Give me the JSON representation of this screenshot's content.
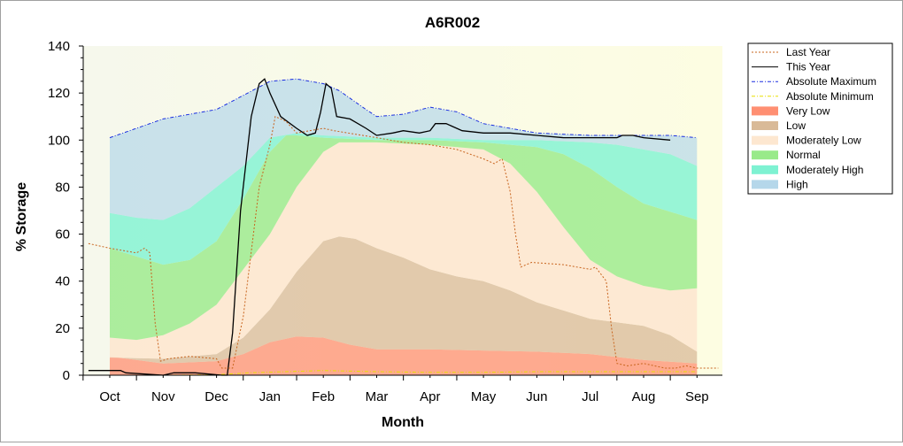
{
  "chart_data": {
    "type": "area",
    "title": "A6R002",
    "xlabel": "Month",
    "ylabel": "% Storage",
    "ylim": [
      0,
      140
    ],
    "yticks": [
      0,
      20,
      40,
      60,
      80,
      100,
      120,
      140
    ],
    "categories": [
      "Oct",
      "Nov",
      "Dec",
      "Jan",
      "Feb",
      "Mar",
      "Apr",
      "May",
      "Jun",
      "Jul",
      "Aug",
      "Sep"
    ],
    "x_unit": "month index (Oct = 0)",
    "legend_position": "right",
    "grid": false,
    "band_bounds": {
      "zero": [
        [
          0,
          0
        ],
        [
          11,
          0
        ]
      ],
      "absolute_minimum": [
        [
          0,
          0
        ],
        [
          1,
          0
        ],
        [
          2,
          0.2
        ],
        [
          2.6,
          1
        ],
        [
          3.3,
          1.5
        ],
        [
          4,
          2
        ],
        [
          5,
          1.5
        ],
        [
          6,
          1.2
        ],
        [
          7,
          1.2
        ],
        [
          8,
          1.5
        ],
        [
          9,
          1.5
        ],
        [
          10,
          1.5
        ],
        [
          11,
          1.5
        ]
      ],
      "very_low_top": [
        [
          0,
          8
        ],
        [
          1,
          5
        ],
        [
          2,
          6
        ],
        [
          2.5,
          9
        ],
        [
          3,
          14
        ],
        [
          3.5,
          16.5
        ],
        [
          4,
          16
        ],
        [
          4.5,
          13
        ],
        [
          5,
          11
        ],
        [
          6,
          11
        ],
        [
          7,
          10.5
        ],
        [
          8,
          10
        ],
        [
          9,
          9
        ],
        [
          10,
          6.5
        ],
        [
          11,
          5
        ]
      ],
      "low_top": [
        [
          0,
          7.5
        ],
        [
          1,
          7
        ],
        [
          2,
          9
        ],
        [
          2.5,
          16
        ],
        [
          3,
          28
        ],
        [
          3.5,
          44
        ],
        [
          4,
          57
        ],
        [
          4.3,
          59
        ],
        [
          4.6,
          58
        ],
        [
          5,
          54
        ],
        [
          5.5,
          50
        ],
        [
          6,
          45
        ],
        [
          6.5,
          42
        ],
        [
          7,
          40
        ],
        [
          7.5,
          36
        ],
        [
          8,
          31
        ],
        [
          9,
          24
        ],
        [
          9.5,
          22.5
        ],
        [
          10,
          21
        ],
        [
          10.5,
          17
        ],
        [
          11,
          10
        ]
      ],
      "moderately_low_top": [
        [
          0,
          16
        ],
        [
          0.5,
          15
        ],
        [
          1,
          17
        ],
        [
          1.5,
          22
        ],
        [
          2,
          30
        ],
        [
          2.5,
          45
        ],
        [
          3,
          60
        ],
        [
          3.5,
          80
        ],
        [
          4,
          95
        ],
        [
          4.3,
          99
        ],
        [
          5,
          99
        ],
        [
          6,
          98
        ],
        [
          7,
          96
        ],
        [
          7.5,
          90
        ],
        [
          8,
          78
        ],
        [
          8.5,
          63
        ],
        [
          9,
          49
        ],
        [
          9.5,
          42
        ],
        [
          10,
          38
        ],
        [
          10.5,
          36
        ],
        [
          11,
          37
        ]
      ],
      "normal_top": [
        [
          0,
          54
        ],
        [
          1,
          47
        ],
        [
          1.5,
          49
        ],
        [
          2,
          57
        ],
        [
          2.5,
          75
        ],
        [
          3,
          95
        ],
        [
          3.3,
          102
        ],
        [
          3.5,
          102
        ],
        [
          4,
          101
        ],
        [
          5,
          100
        ],
        [
          6,
          100
        ],
        [
          7,
          99
        ],
        [
          8,
          97
        ],
        [
          8.5,
          94
        ],
        [
          9,
          88
        ],
        [
          9.5,
          80
        ],
        [
          10,
          73
        ],
        [
          11,
          66
        ]
      ],
      "moderately_high_top": [
        [
          0,
          69
        ],
        [
          0.5,
          67
        ],
        [
          1,
          66
        ],
        [
          1.5,
          71
        ],
        [
          2,
          80
        ],
        [
          2.5,
          89
        ],
        [
          3,
          101
        ],
        [
          3.5,
          103
        ],
        [
          4,
          102
        ],
        [
          5,
          101
        ],
        [
          6,
          101
        ],
        [
          7,
          100
        ],
        [
          8,
          100
        ],
        [
          9,
          99
        ],
        [
          9.5,
          98
        ],
        [
          10,
          96
        ],
        [
          10.5,
          94
        ],
        [
          11,
          89
        ]
      ],
      "high_top": [
        [
          0,
          101
        ],
        [
          1,
          109
        ],
        [
          1.5,
          111
        ],
        [
          2,
          113
        ],
        [
          2.5,
          119
        ],
        [
          3,
          125
        ],
        [
          3.5,
          126
        ],
        [
          4,
          124
        ],
        [
          4.3,
          121
        ],
        [
          4.8,
          113
        ],
        [
          5,
          110
        ],
        [
          5.5,
          111
        ],
        [
          6,
          114
        ],
        [
          6.5,
          112
        ],
        [
          7,
          107
        ],
        [
          8,
          103
        ],
        [
          9,
          102
        ],
        [
          10,
          102
        ],
        [
          10.5,
          102
        ],
        [
          11,
          101
        ]
      ]
    },
    "series": [
      {
        "name": "Last Year",
        "color": "#c8641e",
        "style": "dotted",
        "points": [
          [
            -0.4,
            56
          ],
          [
            0,
            54
          ],
          [
            0.5,
            52
          ],
          [
            0.65,
            54
          ],
          [
            0.75,
            52
          ],
          [
            0.85,
            22
          ],
          [
            0.95,
            6
          ],
          [
            1.1,
            7
          ],
          [
            1.5,
            8
          ],
          [
            2,
            7
          ],
          [
            2.1,
            3
          ],
          [
            2.3,
            3
          ],
          [
            2.5,
            25
          ],
          [
            2.8,
            80
          ],
          [
            3,
            98
          ],
          [
            3.1,
            110
          ],
          [
            3.3,
            108
          ],
          [
            3.5,
            103
          ],
          [
            4,
            105
          ],
          [
            4.2,
            104
          ],
          [
            5,
            101
          ],
          [
            5.5,
            99
          ],
          [
            6,
            98
          ],
          [
            6.5,
            96
          ],
          [
            7,
            92
          ],
          [
            7.2,
            90
          ],
          [
            7.35,
            92
          ],
          [
            7.5,
            78
          ],
          [
            7.6,
            60
          ],
          [
            7.7,
            46
          ],
          [
            7.9,
            48
          ],
          [
            8.5,
            47
          ],
          [
            9,
            45
          ],
          [
            9.1,
            46
          ],
          [
            9.3,
            40
          ],
          [
            9.4,
            20
          ],
          [
            9.5,
            5
          ],
          [
            9.7,
            4
          ],
          [
            10,
            5
          ],
          [
            10.4,
            3
          ],
          [
            10.6,
            3
          ],
          [
            10.8,
            4
          ],
          [
            11,
            3
          ],
          [
            11.4,
            3
          ]
        ]
      },
      {
        "name": "This Year",
        "color": "#000000",
        "style": "solid",
        "points": [
          [
            -0.4,
            2
          ],
          [
            0.2,
            2
          ],
          [
            0.3,
            1
          ],
          [
            1,
            0
          ],
          [
            1.2,
            1
          ],
          [
            1.6,
            1
          ],
          [
            2.1,
            0
          ],
          [
            2.2,
            0
          ],
          [
            2.3,
            18
          ],
          [
            2.45,
            70
          ],
          [
            2.65,
            110
          ],
          [
            2.8,
            124
          ],
          [
            2.9,
            126
          ],
          [
            3,
            120
          ],
          [
            3.2,
            110
          ],
          [
            3.5,
            105
          ],
          [
            3.7,
            102
          ],
          [
            3.85,
            103
          ],
          [
            3.95,
            112
          ],
          [
            4.05,
            124
          ],
          [
            4.15,
            122
          ],
          [
            4.25,
            110
          ],
          [
            4.5,
            109
          ],
          [
            4.8,
            105
          ],
          [
            5,
            102
          ],
          [
            5.3,
            103
          ],
          [
            5.5,
            104
          ],
          [
            5.8,
            103
          ],
          [
            6,
            104
          ],
          [
            6.1,
            107
          ],
          [
            6.3,
            107
          ],
          [
            6.6,
            104
          ],
          [
            7,
            103
          ],
          [
            7.5,
            103
          ],
          [
            8,
            102
          ],
          [
            8.5,
            101
          ],
          [
            9,
            101
          ],
          [
            9.5,
            101
          ],
          [
            9.6,
            102
          ],
          [
            9.8,
            102
          ],
          [
            10,
            101
          ],
          [
            10.5,
            100
          ]
        ]
      },
      {
        "name": "Absolute Maximum",
        "color": "#1a2ee0",
        "style": "dashdot",
        "points": [
          [
            0,
            101
          ],
          [
            1,
            109
          ],
          [
            1.5,
            111
          ],
          [
            2,
            113
          ],
          [
            2.5,
            119
          ],
          [
            3,
            125
          ],
          [
            3.5,
            126
          ],
          [
            4,
            124
          ],
          [
            4.3,
            121
          ],
          [
            4.8,
            113
          ],
          [
            5,
            110
          ],
          [
            5.5,
            111
          ],
          [
            6,
            114
          ],
          [
            6.5,
            112
          ],
          [
            7,
            107
          ],
          [
            8,
            103
          ],
          [
            9,
            102
          ],
          [
            10,
            102
          ],
          [
            10.5,
            102
          ],
          [
            11,
            101
          ]
        ]
      },
      {
        "name": "Absolute Minimum",
        "color": "#e8e000",
        "style": "dashdot",
        "points": [
          [
            0,
            0
          ],
          [
            1,
            0
          ],
          [
            2,
            0.2
          ],
          [
            2.6,
            1
          ],
          [
            3.3,
            1.5
          ],
          [
            4,
            2
          ],
          [
            5,
            1.5
          ],
          [
            6,
            1.2
          ],
          [
            7,
            1.2
          ],
          [
            8,
            1.5
          ],
          [
            9,
            1.5
          ],
          [
            10,
            1.5
          ],
          [
            11,
            1.5
          ]
        ]
      }
    ],
    "bands": [
      {
        "name": "Very Low",
        "lower": "zero",
        "upper": "very_low_top",
        "color": "#ff8f72",
        "opacity": 0.75
      },
      {
        "name": "Low",
        "lower": "very_low_top",
        "upper": "low_top",
        "color": "#d9ba98",
        "opacity": 0.75
      },
      {
        "name": "Moderately Low",
        "lower": "low_top",
        "upper": "moderately_low_top",
        "color": "#fde7d0",
        "opacity": 0.9
      },
      {
        "name": "Normal",
        "lower": "moderately_low_top",
        "upper": "normal_top",
        "color": "#99ea8a",
        "opacity": 0.8
      },
      {
        "name": "Moderately High",
        "lower": "normal_top",
        "upper": "moderately_high_top",
        "color": "#7ef2d2",
        "opacity": 0.8
      },
      {
        "name": "High",
        "lower": "moderately_high_top",
        "upper": "high_top",
        "color": "#b5d7ea",
        "opacity": 0.7
      }
    ],
    "legend": [
      {
        "name": "Last Year",
        "kind": "line",
        "color": "#c8641e",
        "style": "dotted"
      },
      {
        "name": "This Year",
        "kind": "line",
        "color": "#000000",
        "style": "solid"
      },
      {
        "name": "Absolute Maximum",
        "kind": "line",
        "color": "#1a2ee0",
        "style": "dashdot"
      },
      {
        "name": "Absolute Minimum",
        "kind": "line",
        "color": "#e8e000",
        "style": "dashdot"
      },
      {
        "name": "Very Low",
        "kind": "swatch",
        "color": "#ff8f72"
      },
      {
        "name": "Low",
        "kind": "swatch",
        "color": "#d9ba98"
      },
      {
        "name": "Moderately Low",
        "kind": "swatch",
        "color": "#fde7d0"
      },
      {
        "name": "Normal",
        "kind": "swatch",
        "color": "#99ea8a"
      },
      {
        "name": "Moderately High",
        "kind": "swatch",
        "color": "#7ef2d2"
      },
      {
        "name": "High",
        "kind": "swatch",
        "color": "#b5d7ea"
      }
    ]
  }
}
